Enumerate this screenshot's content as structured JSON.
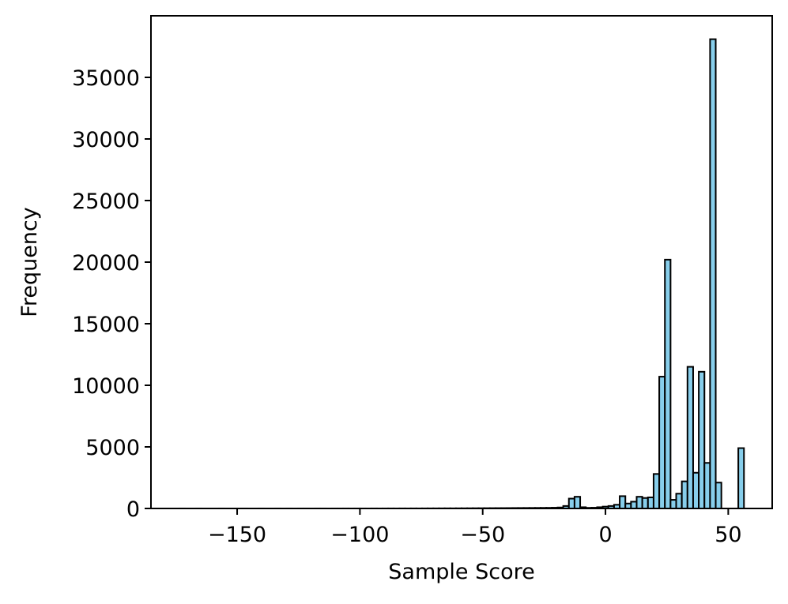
{
  "chart_data": {
    "type": "histogram",
    "xlabel": "Sample Score",
    "ylabel": "Frequency",
    "color": "#87ceeb",
    "bins": [
      -173.6,
      -171.3,
      -169,
      -166.7,
      -164.4,
      -162.1,
      -159.8,
      -157.5,
      -155.2,
      -152.9,
      -150.6,
      -148.3,
      -146,
      -143.7,
      -141.4,
      -139.1,
      -136.8,
      -134.5,
      -132.2,
      -129.9,
      -127.6,
      -125.3,
      -123,
      -120.7,
      -118.4,
      -116.1,
      -113.8,
      -111.5,
      -109.2,
      -106.9,
      -104.6,
      -102.3,
      -100,
      -97.7,
      -95.4,
      -93.1,
      -90.8,
      -88.5,
      -86.2,
      -83.9,
      -81.6,
      -79.3,
      -77,
      -74.7,
      -72.4,
      -70.1,
      -67.8,
      -65.5,
      -63.2,
      -60.9,
      -58.6,
      -56.3,
      -54,
      -51.7,
      -49.4,
      -47.1,
      -44.8,
      -42.5,
      -40.2,
      -37.9,
      -35.6,
      -33.3,
      -31,
      -28.7,
      -26.4,
      -24.1,
      -21.8,
      -19.5,
      -17.2,
      -14.9,
      -12.6,
      -10.3,
      -8,
      -5.7,
      -3.4,
      -1.1,
      1.2,
      3.5,
      5.8,
      8.1,
      10.4,
      12.7,
      15,
      17.3,
      19.6,
      21.9,
      24.2,
      26.5,
      28.8,
      31.1,
      33.4,
      35.7,
      38,
      40.3,
      42.6,
      44.9,
      47.2,
      49.5,
      51.8,
      54.1,
      56.4
    ],
    "counts": [
      1,
      0,
      0,
      1,
      0,
      0,
      0,
      1,
      0,
      0,
      0,
      1,
      0,
      0,
      1,
      0,
      0,
      1,
      0,
      1,
      0,
      1,
      1,
      0,
      1,
      1,
      0,
      1,
      1,
      2,
      1,
      2,
      2,
      1,
      3,
      2,
      3,
      4,
      3,
      5,
      4,
      6,
      5,
      7,
      8,
      9,
      10,
      12,
      11,
      14,
      15,
      17,
      19,
      21,
      24,
      26,
      28,
      30,
      33,
      36,
      38,
      40,
      42,
      45,
      48,
      52,
      60,
      80,
      200,
      800,
      950,
      100,
      50,
      60,
      100,
      150,
      200,
      300,
      1000,
      400,
      550,
      950,
      850,
      900,
      2800,
      10700,
      20200,
      700,
      1200,
      2200,
      11500,
      2900,
      11100,
      3700,
      38100,
      2100,
      0,
      0,
      0,
      4900
    ],
    "xlim": [
      -185.1,
      67.9
    ],
    "ylim": [
      0,
      40000
    ],
    "xticks": [
      {
        "value": -150,
        "label": "−150"
      },
      {
        "value": -100,
        "label": "−100"
      },
      {
        "value": -50,
        "label": "−50"
      },
      0,
      50
    ],
    "yticks": [
      0,
      5000,
      10000,
      15000,
      20000,
      25000,
      30000,
      35000
    ]
  }
}
